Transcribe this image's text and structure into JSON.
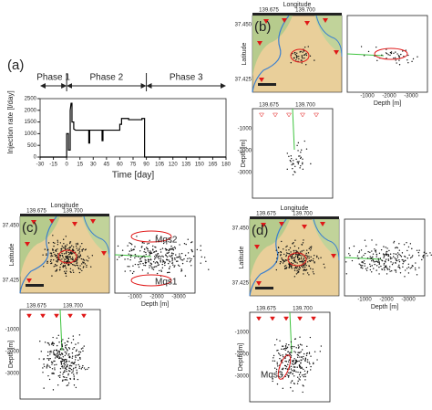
{
  "chart_data": {
    "type": "line",
    "panel_label": "(a)",
    "x_label": "Time [day]",
    "y_label": "Injection rate [l/day]",
    "xlim": [
      -30,
      180
    ],
    "xticks": [
      -30,
      -15,
      0,
      15,
      30,
      45,
      60,
      75,
      90,
      105,
      120,
      135,
      150,
      165,
      180
    ],
    "ylim": [
      0,
      2500
    ],
    "yticks": [
      0,
      500,
      1000,
      1500,
      2000,
      2500
    ],
    "color": "#000000",
    "x": [
      -30,
      0,
      0,
      2,
      2,
      4,
      4,
      5,
      6,
      6,
      8,
      8,
      10,
      25,
      25,
      26,
      26,
      40,
      40,
      41,
      41,
      60,
      60,
      62,
      62,
      70,
      70,
      85,
      85,
      88,
      88,
      180
    ],
    "values": [
      0,
      0,
      1000,
      1000,
      300,
      300,
      2000,
      2300,
      2300,
      1500,
      1500,
      1200,
      1150,
      1150,
      600,
      600,
      1150,
      1150,
      700,
      700,
      1150,
      1150,
      1400,
      1400,
      1650,
      1650,
      1600,
      1600,
      1650,
      1650,
      0,
      0
    ],
    "phases": [
      {
        "name": "Phase 1",
        "start": -30,
        "end": 0
      },
      {
        "name": "Phase 2",
        "start": 0,
        "end": 90
      },
      {
        "name": "Phase 3",
        "start": 90,
        "end": 180
      }
    ]
  },
  "panels": [
    {
      "label": "(b)",
      "x_label": "Longitude",
      "y_label": "Latitude",
      "lon_ticks": [
        "139.675",
        "139.700"
      ],
      "lat_ticks": [
        "37.450",
        "37.425"
      ],
      "depth_label": "Depth [m]",
      "depth_ticks": [
        "-1000",
        "-2000",
        "-3000"
      ],
      "annotations": []
    },
    {
      "label": "(c)",
      "x_label": "Longitude",
      "y_label": "Latitude",
      "lon_ticks": [
        "139.675",
        "139.700"
      ],
      "lat_ticks": [
        "37.450",
        "37.425"
      ],
      "depth_label": "Depth [m]",
      "depth_ticks": [
        "-1000",
        "-2000",
        "-3000"
      ],
      "annotations": [
        "Mqs2",
        "Mqs1"
      ]
    },
    {
      "label": "(d)",
      "x_label": "Longitude",
      "y_label": "Latitude",
      "lon_ticks": [
        "139.675",
        "139.700"
      ],
      "lat_ticks": [
        "37.450",
        "37.425"
      ],
      "depth_label": "Depth [m]",
      "depth_ticks": [
        "-1000",
        "-2000",
        "-3000"
      ],
      "annotations": [
        "Mqs3"
      ]
    }
  ]
}
